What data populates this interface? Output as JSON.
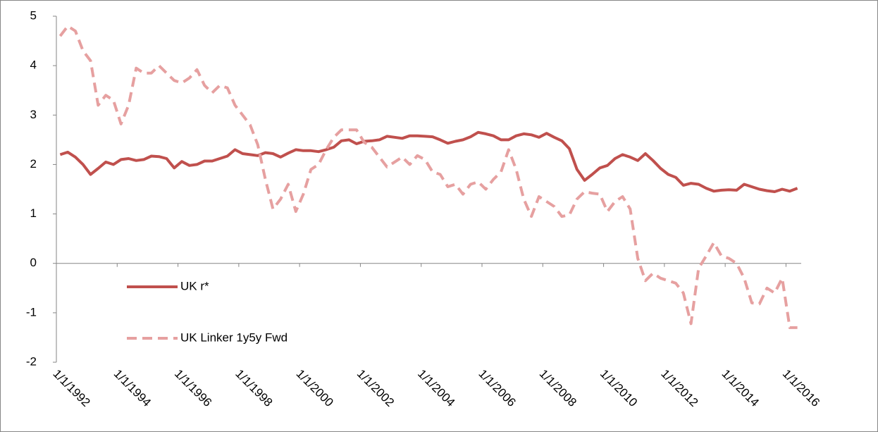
{
  "chart_data": {
    "type": "line",
    "categories": [
      "1/1/1992",
      null,
      null,
      null,
      null,
      null,
      null,
      null,
      "1/1/1994",
      null,
      null,
      null,
      null,
      null,
      null,
      null,
      "1/1/1996",
      null,
      null,
      null,
      null,
      null,
      null,
      null,
      "1/1/1998",
      null,
      null,
      null,
      null,
      null,
      null,
      null,
      "1/1/2000",
      null,
      null,
      null,
      null,
      null,
      null,
      null,
      "1/1/2002",
      null,
      null,
      null,
      null,
      null,
      null,
      null,
      "1/1/2004",
      null,
      null,
      null,
      null,
      null,
      null,
      null,
      "1/1/2006",
      null,
      null,
      null,
      null,
      null,
      null,
      null,
      "1/1/2008",
      null,
      null,
      null,
      null,
      null,
      null,
      null,
      "1/1/2010",
      null,
      null,
      null,
      null,
      null,
      null,
      null,
      "1/1/2012",
      null,
      null,
      null,
      null,
      null,
      null,
      null,
      "1/1/2014",
      null,
      null,
      null,
      null,
      null,
      null,
      null,
      "1/1/2016",
      null
    ],
    "series": [
      {
        "name": "UK r*",
        "color": "#c0504d",
        "dashed": false,
        "values": [
          2.2,
          2.25,
          2.15,
          2.0,
          1.8,
          1.92,
          2.05,
          2.0,
          2.1,
          2.12,
          2.08,
          2.1,
          2.17,
          2.16,
          2.12,
          1.93,
          2.06,
          1.98,
          2.0,
          2.07,
          2.07,
          2.12,
          2.17,
          2.3,
          2.22,
          2.2,
          2.18,
          2.24,
          2.22,
          2.15,
          2.23,
          2.3,
          2.28,
          2.28,
          2.26,
          2.3,
          2.35,
          2.48,
          2.5,
          2.42,
          2.47,
          2.48,
          2.5,
          2.57,
          2.55,
          2.53,
          2.58,
          2.58,
          2.57,
          2.56,
          2.5,
          2.43,
          2.47,
          2.5,
          2.56,
          2.65,
          2.62,
          2.58,
          2.5,
          2.5,
          2.58,
          2.62,
          2.6,
          2.55,
          2.63,
          2.55,
          2.48,
          2.32,
          1.9,
          1.68,
          1.8,
          1.93,
          1.98,
          2.12,
          2.2,
          2.15,
          2.08,
          2.22,
          2.08,
          1.92,
          1.8,
          1.74,
          1.58,
          1.62,
          1.6,
          1.52,
          1.46,
          1.48,
          1.49,
          1.48,
          1.6,
          1.55,
          1.5,
          1.47,
          1.45,
          1.5,
          1.46,
          1.52
        ]
      },
      {
        "name": "UK Linker 1y5y Fwd",
        "color": "#e6a0a0",
        "dashed": true,
        "values": [
          4.6,
          4.8,
          4.7,
          4.3,
          4.1,
          3.2,
          3.4,
          3.3,
          2.82,
          3.2,
          3.95,
          3.85,
          3.85,
          4.0,
          3.85,
          3.7,
          3.65,
          3.75,
          3.92,
          3.6,
          3.45,
          3.6,
          3.55,
          3.2,
          3.0,
          2.8,
          2.4,
          1.7,
          1.1,
          1.3,
          1.6,
          1.05,
          1.4,
          1.9,
          2.0,
          2.3,
          2.55,
          2.7,
          2.7,
          2.7,
          2.45,
          2.35,
          2.15,
          1.95,
          2.05,
          2.15,
          2.0,
          2.18,
          2.1,
          1.85,
          1.8,
          1.55,
          1.6,
          1.4,
          1.6,
          1.65,
          1.5,
          1.7,
          1.85,
          2.3,
          1.9,
          1.3,
          0.95,
          1.35,
          1.25,
          1.15,
          0.95,
          0.98,
          1.3,
          1.45,
          1.42,
          1.4,
          1.05,
          1.25,
          1.35,
          1.1,
          0.1,
          -0.35,
          -0.2,
          -0.3,
          -0.35,
          -0.4,
          -0.6,
          -1.22,
          -0.1,
          0.15,
          0.42,
          0.15,
          0.1,
          0.0,
          -0.3,
          -0.8,
          -0.82,
          -0.5,
          -0.6,
          -0.3,
          -1.3,
          -1.3
        ]
      }
    ],
    "ylim": [
      -2,
      5
    ],
    "yticks": [
      -2,
      -1,
      0,
      1,
      2,
      3,
      4,
      5
    ]
  }
}
